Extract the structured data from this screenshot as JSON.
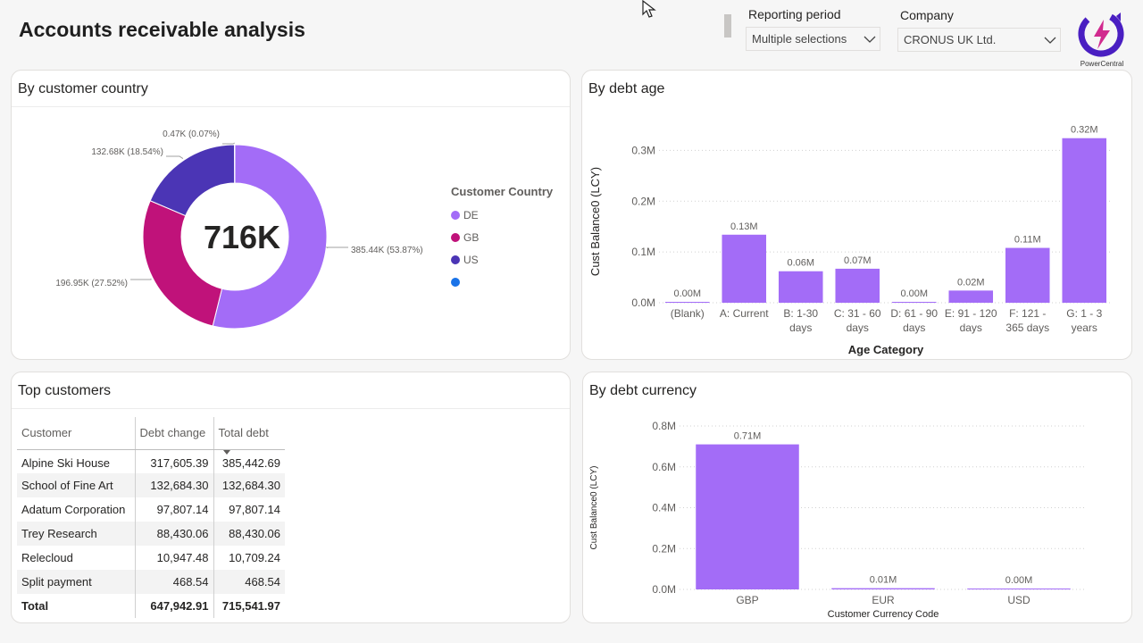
{
  "page": {
    "title": "Accounts receivable analysis"
  },
  "slicers": {
    "reporting_period": {
      "label": "Reporting period",
      "value": "Multiple selections"
    },
    "company": {
      "label": "Company",
      "value": "CRONUS UK Ltd."
    }
  },
  "logo": {
    "text": "PowerCentral"
  },
  "colors": {
    "DE": "#a36cf7",
    "GB": "#c0127a",
    "US": "#4b35b5",
    "blank": "#1a73e8",
    "bar": "#a36cf7"
  },
  "country_card": {
    "title": "By customer country",
    "center_value": "716K",
    "legend_title": "Customer Country",
    "chart_data": {
      "type": "pie",
      "slices": [
        {
          "name": "DE",
          "value": 385.44,
          "percent": 53.87,
          "label": "385.44K (53.87%)"
        },
        {
          "name": "GB",
          "value": 196.95,
          "percent": 27.52,
          "label": "196.95K (27.52%)"
        },
        {
          "name": "US",
          "value": 132.68,
          "percent": 18.54,
          "label": "132.68K (18.54%)"
        },
        {
          "name": "",
          "value": 0.47,
          "percent": 0.07,
          "label": "0.47K (0.07%)"
        }
      ]
    }
  },
  "age_card": {
    "title": "By debt age",
    "chart_data": {
      "type": "bar",
      "xlabel": "Age Category",
      "ylabel": "Cust Balance0 (LCY)",
      "ylim": [
        0,
        0.32
      ],
      "yticks": [
        {
          "value": 0,
          "label": "0.0M"
        },
        {
          "value": 0.1,
          "label": "0.1M"
        },
        {
          "value": 0.2,
          "label": "0.2M"
        },
        {
          "value": 0.3,
          "label": "0.3M"
        }
      ],
      "categories": [
        [
          "(Blank)"
        ],
        [
          "A: Current"
        ],
        [
          "B: 1-30",
          "days"
        ],
        [
          "C: 31 - 60",
          "days"
        ],
        [
          "D: 61 - 90",
          "days"
        ],
        [
          "E: 91 - 120",
          "days"
        ],
        [
          "F: 121 -",
          "365 days"
        ],
        [
          "G: 1 - 3",
          "years"
        ]
      ],
      "values": [
        0.001,
        0.134,
        0.062,
        0.067,
        0.001,
        0.024,
        0.108,
        0.324
      ],
      "data_labels": [
        "0.00M",
        "0.13M",
        "0.06M",
        "0.07M",
        "0.00M",
        "0.02M",
        "0.11M",
        "0.32M"
      ],
      "grid": true
    }
  },
  "customers_card": {
    "title": "Top customers",
    "columns": [
      "Customer",
      "Debt change",
      "Total debt"
    ],
    "rows": [
      [
        "Alpine Ski House",
        "317,605.39",
        "385,442.69"
      ],
      [
        "School of Fine Art",
        "132,684.30",
        "132,684.30"
      ],
      [
        "Adatum Corporation",
        "97,807.14",
        "97,807.14"
      ],
      [
        "Trey Research",
        "88,430.06",
        "88,430.06"
      ],
      [
        "Relecloud",
        "10,947.48",
        "10,709.24"
      ],
      [
        "Split payment",
        "468.54",
        "468.54"
      ]
    ],
    "total": [
      "Total",
      "647,942.91",
      "715,541.97"
    ]
  },
  "currency_card": {
    "title": "By debt currency",
    "chart_data": {
      "type": "bar",
      "xlabel": "Customer Currency Code",
      "ylabel": "Cust Balance0 (LCY)",
      "ylim": [
        0,
        0.8
      ],
      "yticks": [
        {
          "value": 0,
          "label": "0.0M"
        },
        {
          "value": 0.2,
          "label": "0.2M"
        },
        {
          "value": 0.4,
          "label": "0.4M"
        },
        {
          "value": 0.6,
          "label": "0.6M"
        },
        {
          "value": 0.8,
          "label": "0.8M"
        }
      ],
      "categories": [
        [
          "GBP"
        ],
        [
          "EUR"
        ],
        [
          "USD"
        ]
      ],
      "values": [
        0.71,
        0.006,
        0.001
      ],
      "data_labels": [
        "0.71M",
        "0.01M",
        "0.00M"
      ],
      "grid": true
    }
  }
}
